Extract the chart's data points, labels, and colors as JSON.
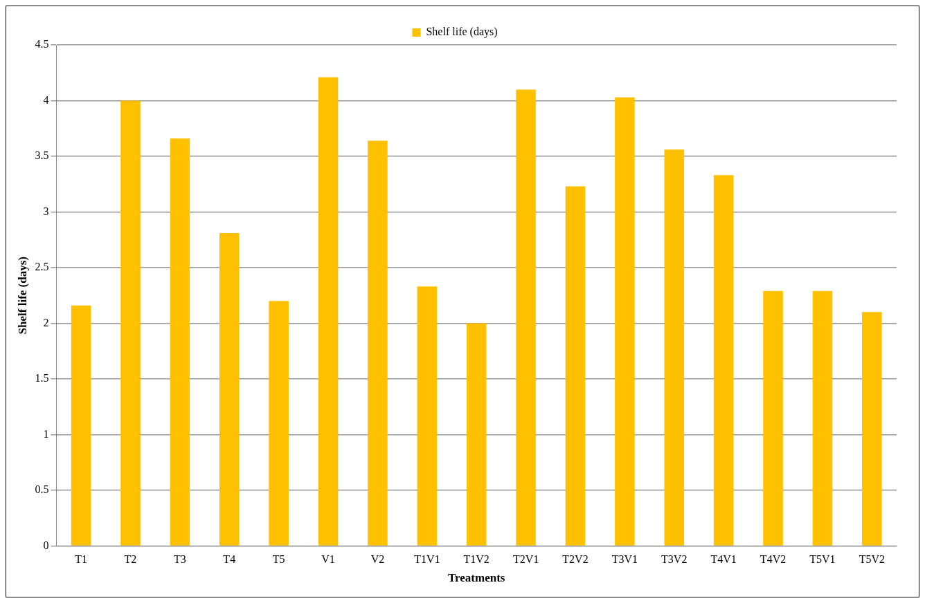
{
  "chart_data": {
    "type": "bar",
    "xlabel": "Treatments",
    "ylabel": "Shelf life (days)",
    "categories": [
      "T1",
      "T2",
      "T3",
      "T4",
      "T5",
      "V1",
      "V2",
      "T1V1",
      "T1V2",
      "T2V1",
      "T2V2",
      "T3V1",
      "T3V2",
      "T4V1",
      "T4V2",
      "T5V1",
      "T5V2"
    ],
    "series": [
      {
        "name": "Shelf life (days)",
        "color": "#ffc000",
        "values": [
          2.16,
          4.0,
          3.66,
          2.81,
          2.2,
          4.21,
          3.64,
          2.33,
          2.0,
          4.1,
          3.23,
          4.03,
          3.56,
          3.33,
          2.29,
          2.29,
          2.1
        ]
      }
    ],
    "ylim": [
      0,
      4.5
    ],
    "yticks": [
      0,
      0.5,
      1,
      1.5,
      2,
      2.5,
      3,
      3.5,
      4,
      4.5
    ],
    "grid": "y",
    "legend": "top"
  }
}
